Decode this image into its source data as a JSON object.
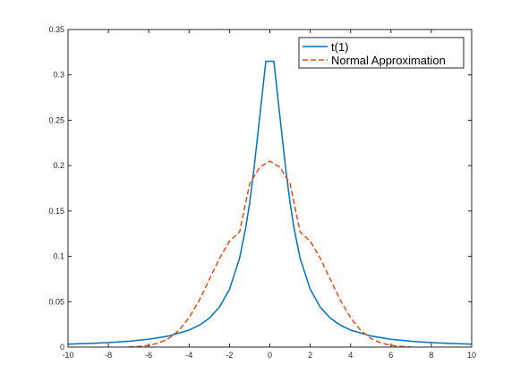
{
  "chart_data": {
    "type": "line",
    "title": "",
    "xlabel": "",
    "ylabel": "",
    "xlim": [
      -10,
      10
    ],
    "ylim": [
      0,
      0.35
    ],
    "xticks": [
      -10,
      -8,
      -6,
      -4,
      -2,
      0,
      2,
      4,
      6,
      8,
      10
    ],
    "yticks": [
      0,
      0.05,
      0.1,
      0.15,
      0.2,
      0.25,
      0.3,
      0.35
    ],
    "xtick_labels": [
      "-10",
      "-8",
      "-6",
      "-4",
      "-2",
      "0",
      "2",
      "4",
      "6",
      "8",
      "10"
    ],
    "ytick_labels": [
      "0",
      "0.05",
      "0.1",
      "0.15",
      "0.2",
      "0.25",
      "0.3",
      "0.35"
    ],
    "grid": false,
    "legend_position": "top-right",
    "series": [
      {
        "name": "t(1)",
        "color": "#0072BD",
        "line_style": "solid",
        "x": [
          -10,
          -9,
          -8,
          -7,
          -6,
          -5,
          -4,
          -3.5,
          -3,
          -2.5,
          -2,
          -1.5,
          -1.2,
          -1,
          -0.8,
          -0.6,
          -0.4,
          -0.2,
          0,
          0.2,
          0.4,
          0.6,
          0.8,
          1,
          1.2,
          1.5,
          2,
          2.5,
          3,
          3.5,
          4,
          5,
          6,
          7,
          8,
          9,
          10
        ],
        "y": [
          0.0032,
          0.0039,
          0.0049,
          0.0064,
          0.0086,
          0.0122,
          0.0187,
          0.0241,
          0.0318,
          0.0439,
          0.0637,
          0.0979,
          0.1308,
          0.159,
          0.1941,
          0.234,
          0.2744,
          0.315,
          0.315,
          0.315,
          0.2744,
          0.234,
          0.1941,
          0.159,
          0.1308,
          0.0979,
          0.0637,
          0.0439,
          0.0318,
          0.0241,
          0.0187,
          0.0122,
          0.0086,
          0.0064,
          0.0049,
          0.0039,
          0.0032
        ]
      },
      {
        "name": "Normal Approximation",
        "color": "#D95319",
        "line_style": "dashed",
        "x": [
          -7,
          -6.5,
          -6,
          -5.5,
          -5,
          -4.5,
          -4,
          -3.5,
          -3,
          -2.5,
          -2,
          -1.5,
          -1,
          -0.5,
          0,
          0.5,
          1,
          1.5,
          2,
          2.5,
          3,
          3.5,
          4,
          4.5,
          5,
          5.5,
          6,
          6.5,
          7
        ],
        "y": [
          0.0002,
          0.0007,
          0.0019,
          0.0045,
          0.0096,
          0.0184,
          0.0323,
          0.0514,
          0.0743,
          0.0976,
          0.1167,
          0.1269,
          0.18,
          0.1982,
          0.205,
          0.1982,
          0.18,
          0.1269,
          0.1167,
          0.0976,
          0.0743,
          0.0514,
          0.0323,
          0.0184,
          0.0096,
          0.0045,
          0.0019,
          0.0007,
          0.0002
        ]
      }
    ]
  }
}
